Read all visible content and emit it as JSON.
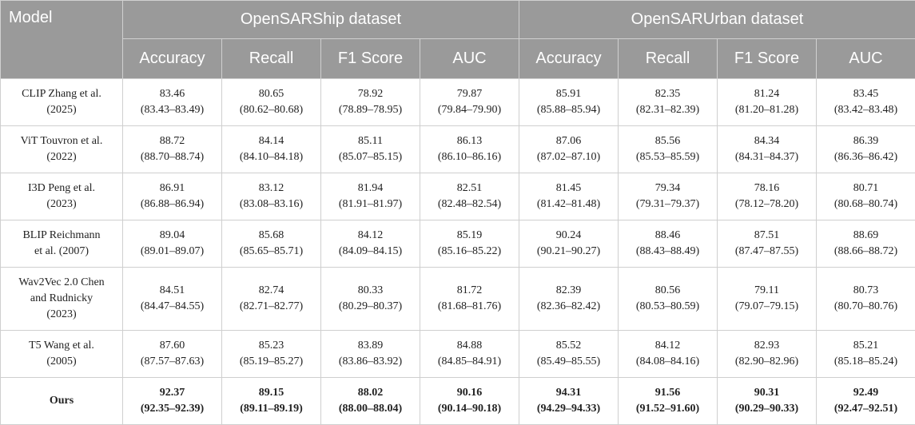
{
  "header": {
    "model": "Model",
    "dataset1": "OpenSARShip dataset",
    "dataset2": "OpenSARUrban dataset",
    "metrics": [
      "Accuracy",
      "Recall",
      "F1 Score",
      "AUC",
      "Accuracy",
      "Recall",
      "F1 Score",
      "AUC"
    ]
  },
  "rows": [
    {
      "model": [
        "CLIP Zhang et al.",
        "(2025)"
      ],
      "cells": [
        [
          "83.46",
          "(83.43–83.49)"
        ],
        [
          "80.65",
          "(80.62–80.68)"
        ],
        [
          "78.92",
          "(78.89–78.95)"
        ],
        [
          "79.87",
          "(79.84–79.90)"
        ],
        [
          "85.91",
          "(85.88–85.94)"
        ],
        [
          "82.35",
          "(82.31–82.39)"
        ],
        [
          "81.24",
          "(81.20–81.28)"
        ],
        [
          "83.45",
          "(83.42–83.48)"
        ]
      ]
    },
    {
      "model": [
        "ViT Touvron et al.",
        "(2022)"
      ],
      "cells": [
        [
          "88.72",
          "(88.70–88.74)"
        ],
        [
          "84.14",
          "(84.10–84.18)"
        ],
        [
          "85.11",
          "(85.07–85.15)"
        ],
        [
          "86.13",
          "(86.10–86.16)"
        ],
        [
          "87.06",
          "(87.02–87.10)"
        ],
        [
          "85.56",
          "(85.53–85.59)"
        ],
        [
          "84.34",
          "(84.31–84.37)"
        ],
        [
          "86.39",
          "(86.36–86.42)"
        ]
      ]
    },
    {
      "model": [
        "I3D Peng et al.",
        "(2023)"
      ],
      "cells": [
        [
          "86.91",
          "(86.88–86.94)"
        ],
        [
          "83.12",
          "(83.08–83.16)"
        ],
        [
          "81.94",
          "(81.91–81.97)"
        ],
        [
          "82.51",
          "(82.48–82.54)"
        ],
        [
          "81.45",
          "(81.42–81.48)"
        ],
        [
          "79.34",
          "(79.31–79.37)"
        ],
        [
          "78.16",
          "(78.12–78.20)"
        ],
        [
          "80.71",
          "(80.68–80.74)"
        ]
      ]
    },
    {
      "model": [
        "BLIP Reichmann",
        "et al. (2007)"
      ],
      "cells": [
        [
          "89.04",
          "(89.01–89.07)"
        ],
        [
          "85.68",
          "(85.65–85.71)"
        ],
        [
          "84.12",
          "(84.09–84.15)"
        ],
        [
          "85.19",
          "(85.16–85.22)"
        ],
        [
          "90.24",
          "(90.21–90.27)"
        ],
        [
          "88.46",
          "(88.43–88.49)"
        ],
        [
          "87.51",
          "(87.47–87.55)"
        ],
        [
          "88.69",
          "(88.66–88.72)"
        ]
      ]
    },
    {
      "model": [
        "Wav2Vec 2.0 Chen",
        "and Rudnicky",
        "(2023)"
      ],
      "cells": [
        [
          "84.51",
          "(84.47–84.55)"
        ],
        [
          "82.74",
          "(82.71–82.77)"
        ],
        [
          "80.33",
          "(80.29–80.37)"
        ],
        [
          "81.72",
          "(81.68–81.76)"
        ],
        [
          "82.39",
          "(82.36–82.42)"
        ],
        [
          "80.56",
          "(80.53–80.59)"
        ],
        [
          "79.11",
          "(79.07–79.15)"
        ],
        [
          "80.73",
          "(80.70–80.76)"
        ]
      ]
    },
    {
      "model": [
        "T5 Wang et al.",
        "(2005)"
      ],
      "cells": [
        [
          "87.60",
          "(87.57–87.63)"
        ],
        [
          "85.23",
          "(85.19–85.27)"
        ],
        [
          "83.89",
          "(83.86–83.92)"
        ],
        [
          "84.88",
          "(84.85–84.91)"
        ],
        [
          "85.52",
          "(85.49–85.55)"
        ],
        [
          "84.12",
          "(84.08–84.16)"
        ],
        [
          "82.93",
          "(82.90–82.96)"
        ],
        [
          "85.21",
          "(85.18–85.24)"
        ]
      ]
    },
    {
      "model": [
        "Ours"
      ],
      "cells": [
        [
          "92.37",
          "(92.35–92.39)"
        ],
        [
          "89.15",
          "(89.11–89.19)"
        ],
        [
          "88.02",
          "(88.00–88.04)"
        ],
        [
          "90.16",
          "(90.14–90.18)"
        ],
        [
          "94.31",
          "(94.29–94.33)"
        ],
        [
          "91.56",
          "(91.52–91.60)"
        ],
        [
          "90.31",
          "(90.29–90.33)"
        ],
        [
          "92.49",
          "(92.47–92.51)"
        ]
      ]
    }
  ]
}
